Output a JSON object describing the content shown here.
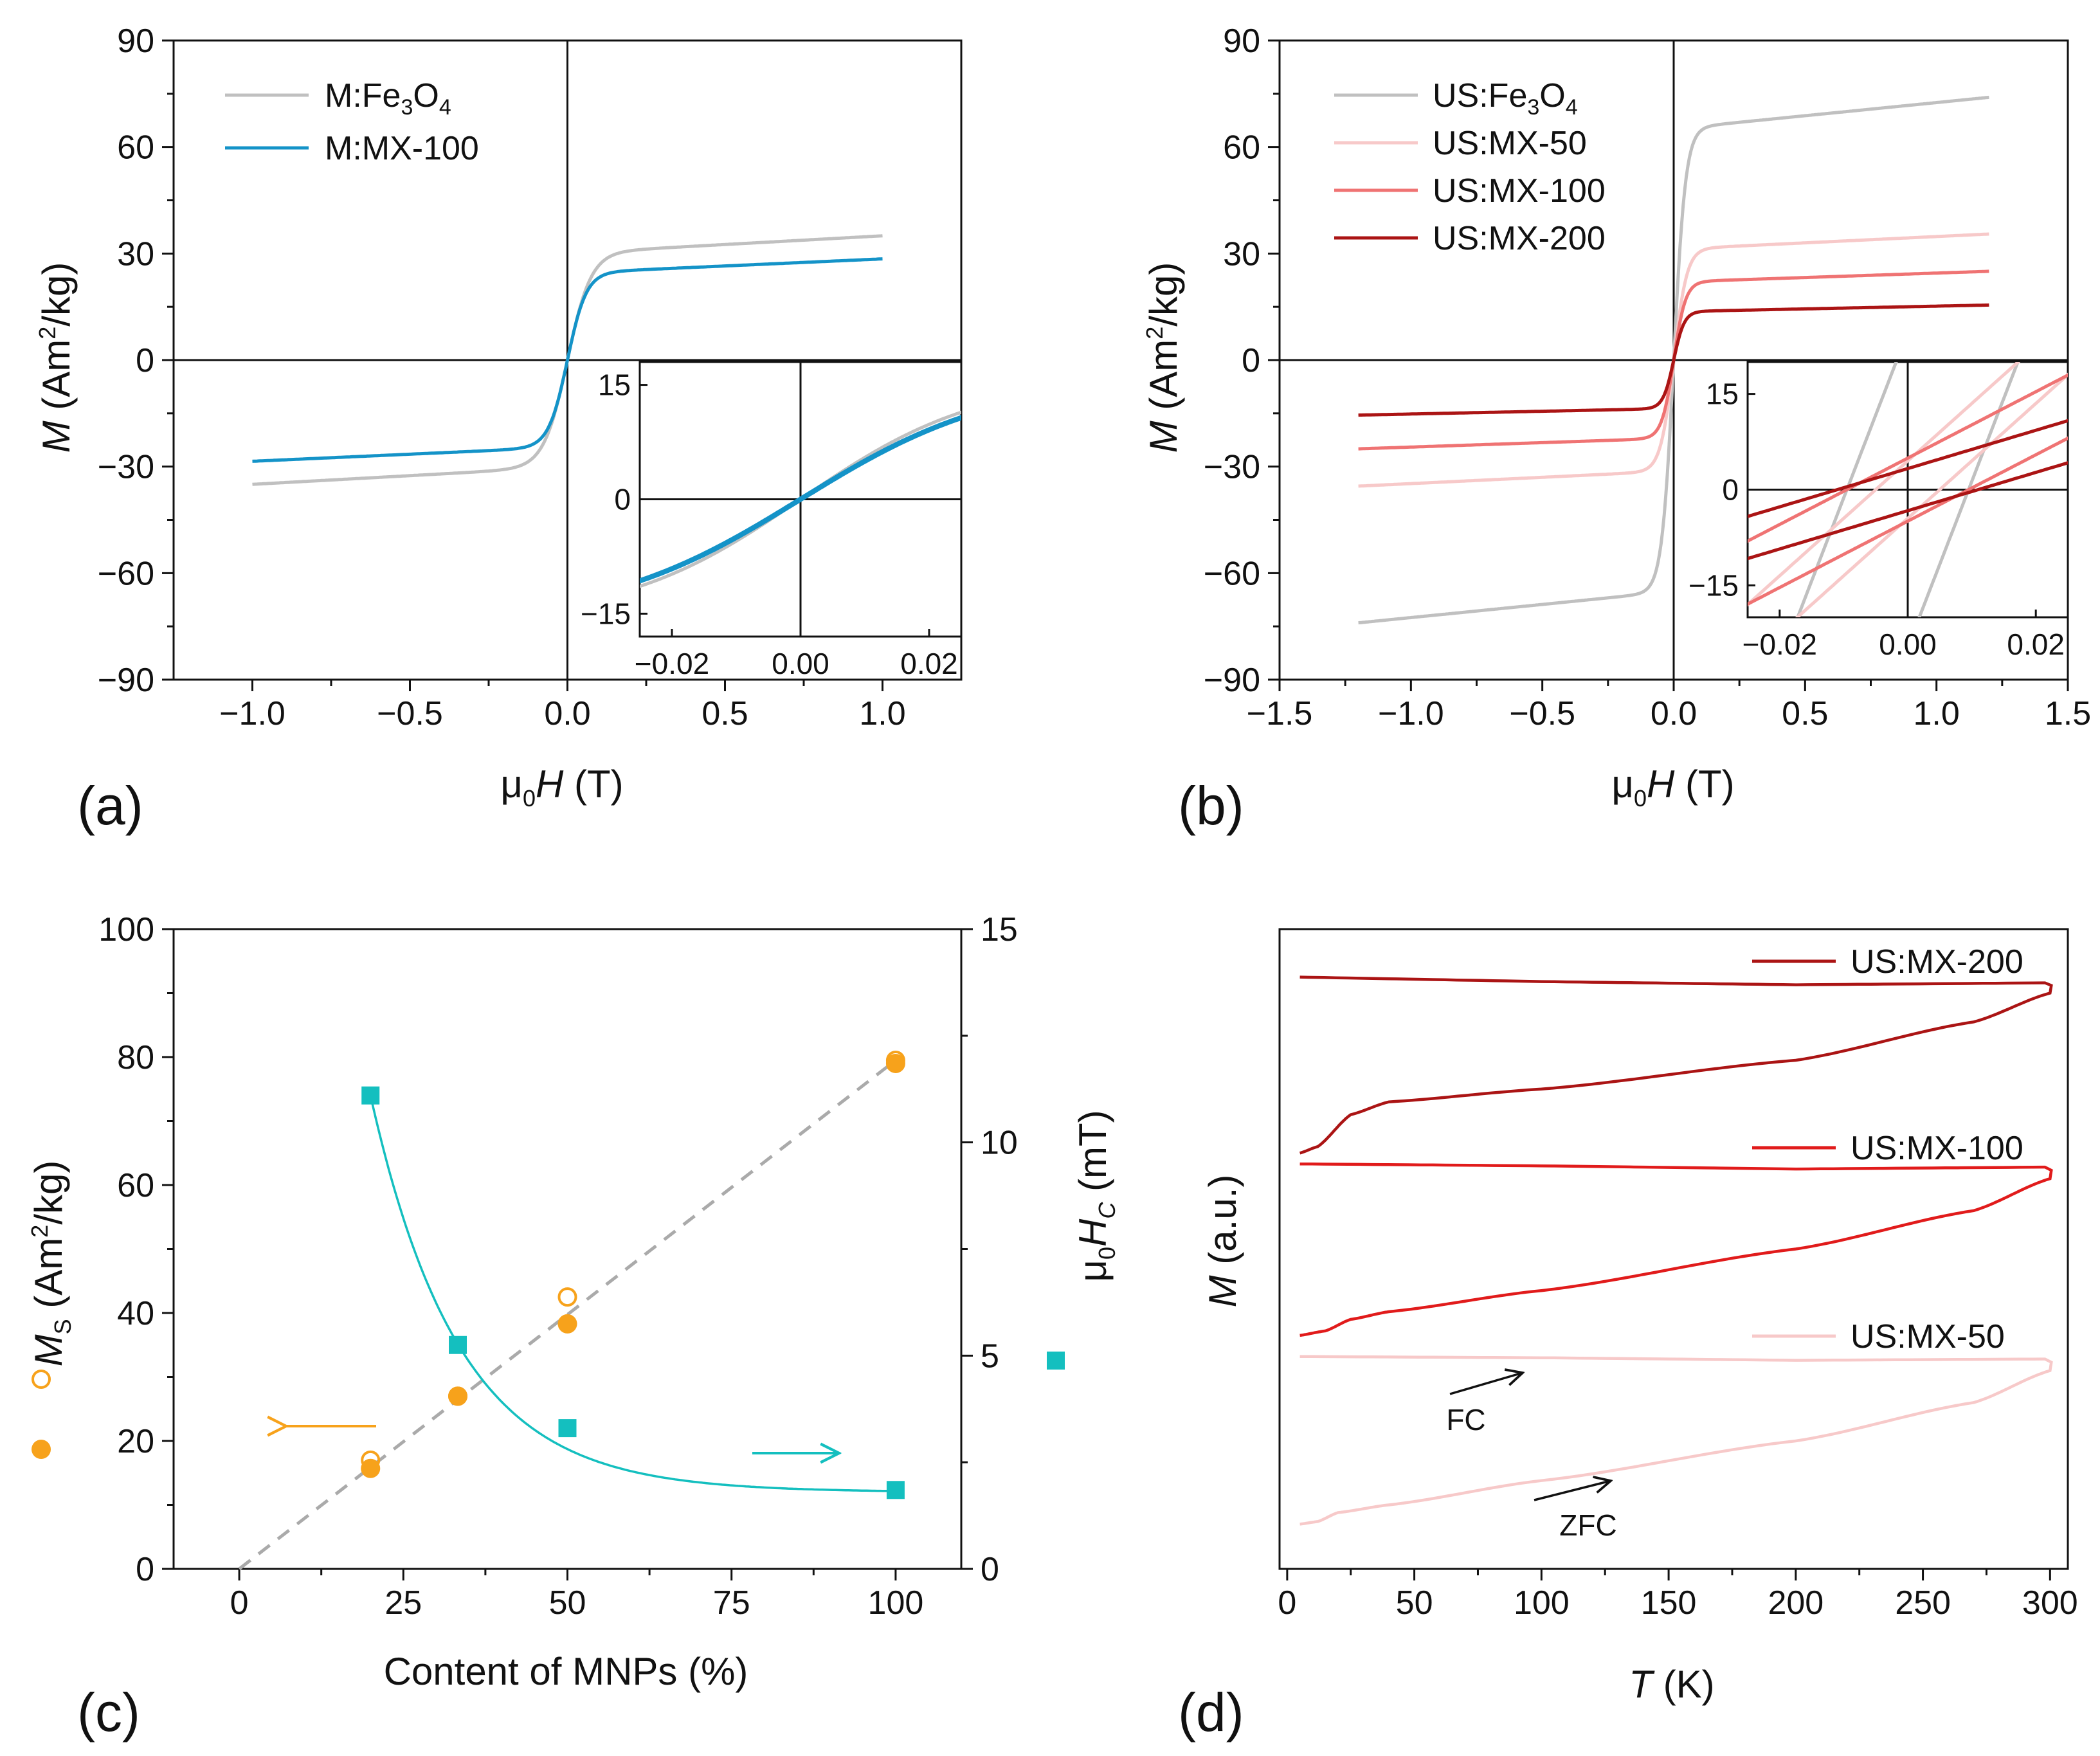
{
  "colors": {
    "gray": "#c0c0c0",
    "blue": "#1493c8",
    "pale_red": "#f7c9c9",
    "light_red": "#ef7373",
    "red": "#e11b1b",
    "dark_red": "#ab1414",
    "orange": "#f7a21b",
    "teal": "#14bfbf",
    "dash_gray": "#aaaaaa"
  },
  "chart_data": [
    {
      "panel": "(a)",
      "type": "line",
      "xlabel": "μ0H (T)",
      "ylabel": "M (Am2/kg)",
      "xlim": [
        -1.25,
        1.25
      ],
      "ylim": [
        -90,
        90
      ],
      "xticks": [
        "−1.0",
        "−0.5",
        "0.0",
        "0.5",
        "1.0"
      ],
      "yticks": [
        "−90",
        "−60",
        "−30",
        "0",
        "30",
        "60",
        "90"
      ],
      "legend": [
        "M:Fe3O4",
        "M:MX-100"
      ],
      "series": [
        {
          "name": "M:Fe3O4",
          "ms": 35,
          "x": [
            -1.0,
            1.0
          ],
          "color": "gray"
        },
        {
          "name": "M:MX-100",
          "ms": 28.5,
          "x": [
            -1.0,
            1.0
          ],
          "color": "blue"
        }
      ],
      "inset": {
        "xlim": [
          -0.025,
          0.025
        ],
        "ylim": [
          -18,
          18
        ],
        "xticks": [
          "−0.02",
          "0.00",
          "0.02"
        ],
        "yticks": [
          "−15",
          "0",
          "15"
        ]
      }
    },
    {
      "panel": "(b)",
      "type": "line",
      "xlabel": "μ0H (T)",
      "ylabel": "M (Am2/kg)",
      "xlim": [
        -1.5,
        1.5
      ],
      "ylim": [
        -90,
        90
      ],
      "xticks": [
        "−1.5",
        "−1.0",
        "−0.5",
        "0.0",
        "0.5",
        "1.0",
        "1.5"
      ],
      "yticks": [
        "−90",
        "−60",
        "−30",
        "0",
        "30",
        "60",
        "90"
      ],
      "legend": [
        "US:Fe3O4",
        "US:MX-50",
        "US:MX-100",
        "US:MX-200"
      ],
      "series": [
        {
          "name": "US:Fe3O4",
          "ms": 74,
          "hc": 0.0095,
          "color": "gray"
        },
        {
          "name": "US:MX-50",
          "ms": 35.5,
          "hc": 0.005,
          "color": "pale_red"
        },
        {
          "name": "US:MX-100",
          "ms": 25,
          "hc": 0.0095,
          "color": "light_red"
        },
        {
          "name": "US:MX-200",
          "ms": 15.5,
          "hc": 0.011,
          "color": "dark_red"
        }
      ],
      "inset": {
        "xlim": [
          -0.025,
          0.025
        ],
        "ylim": [
          -20,
          20
        ],
        "xticks": [
          "−0.02",
          "0.00",
          "0.02"
        ],
        "yticks": [
          "−15",
          "0",
          "15"
        ]
      }
    },
    {
      "panel": "(c)",
      "type": "scatter",
      "xlabel": "Content of MNPs (%)",
      "ylabel_left": "MS (Am2/kg)",
      "ylabel_right": "μ0HC (mT)",
      "xlim": [
        -10,
        110
      ],
      "ylim_left": [
        0,
        100
      ],
      "ylim_right": [
        0,
        15
      ],
      "xticks": [
        "0",
        "25",
        "50",
        "75",
        "100"
      ],
      "yticks_left": [
        "0",
        "20",
        "40",
        "60",
        "80",
        "100"
      ],
      "yticks_right": [
        "0",
        "5",
        "10",
        "15"
      ],
      "series": [
        {
          "name": "Ms open",
          "x": [
            20,
            33.3,
            50,
            100
          ],
          "y": [
            17,
            27,
            42.5,
            79.5
          ],
          "marker": "open-circle",
          "color": "orange"
        },
        {
          "name": "Ms filled",
          "x": [
            20,
            33.3,
            50,
            100
          ],
          "y": [
            15.7,
            27,
            38.3,
            79
          ],
          "marker": "filled-circle",
          "color": "orange"
        },
        {
          "name": "Hc",
          "x": [
            20,
            33.3,
            50,
            100
          ],
          "y": [
            11.1,
            5.25,
            3.3,
            1.85
          ],
          "marker": "square",
          "axis": "right",
          "color": "teal"
        }
      ],
      "fit_line": {
        "x": [
          0,
          100
        ],
        "y": [
          0,
          79.5
        ]
      }
    },
    {
      "panel": "(d)",
      "type": "line",
      "xlabel": "T (K)",
      "ylabel": "M (a.u.)",
      "xlim": [
        -3,
        307
      ],
      "ylim": [
        0,
        100
      ],
      "xticks": [
        "0",
        "50",
        "100",
        "150",
        "200",
        "250",
        "300"
      ],
      "legend": [
        "US:MX-200",
        "US:MX-100",
        "US:MX-50"
      ],
      "annotations": [
        "FC",
        "ZFC"
      ],
      "series": [
        {
          "name": "US:MX-200",
          "fc": [
            [
              5,
              92.5
            ],
            [
              100,
              91.8
            ],
            [
              200,
              91.3
            ],
            [
              298,
              91.6
            ]
          ],
          "zfc": [
            [
              5,
              65
            ],
            [
              12,
              66
            ],
            [
              25,
              71
            ],
            [
              40,
              73
            ],
            [
              100,
              75
            ],
            [
              200,
              79.5
            ],
            [
              270,
              85.5
            ],
            [
              300,
              90
            ]
          ],
          "color": "dark_red"
        },
        {
          "name": "US:MX-100",
          "fc": [
            [
              5,
              63.3
            ],
            [
              100,
              63
            ],
            [
              200,
              62.5
            ],
            [
              298,
              62.8
            ]
          ],
          "zfc": [
            [
              5,
              36.5
            ],
            [
              15,
              37.2
            ],
            [
              25,
              39
            ],
            [
              40,
              40.2
            ],
            [
              100,
              43.5
            ],
            [
              200,
              50
            ],
            [
              270,
              56
            ],
            [
              300,
              61
            ]
          ],
          "color": "red"
        },
        {
          "name": "US:MX-50",
          "fc": [
            [
              5,
              33.2
            ],
            [
              100,
              33
            ],
            [
              200,
              32.6
            ],
            [
              298,
              32.8
            ]
          ],
          "zfc": [
            [
              5,
              7
            ],
            [
              12,
              7.4
            ],
            [
              20,
              8.8
            ],
            [
              40,
              10
            ],
            [
              100,
              13.8
            ],
            [
              200,
              20
            ],
            [
              270,
              26
            ],
            [
              300,
              31
            ]
          ],
          "color": "pale_red"
        }
      ]
    }
  ]
}
